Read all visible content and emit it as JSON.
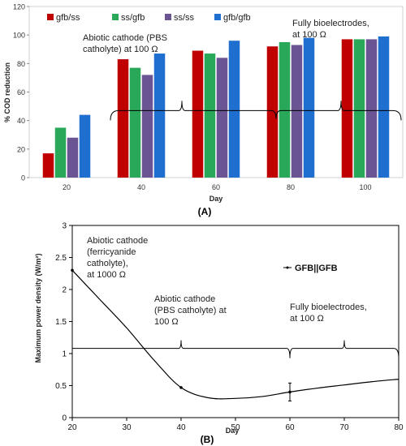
{
  "chart_data": [
    {
      "type": "bar",
      "panel_label": "(A)",
      "xlabel": "Day",
      "ylabel": "% COD reduction",
      "ylim": [
        0,
        120
      ],
      "yticks": [
        0,
        20,
        40,
        60,
        80,
        100,
        120
      ],
      "grid": false,
      "legend_position": "top-left",
      "categories": [
        "20",
        "40",
        "60",
        "80",
        "100"
      ],
      "series": [
        {
          "name": "gfb/ss",
          "color": "#c00000",
          "values": [
            17,
            83,
            89,
            92,
            97
          ]
        },
        {
          "name": "ss/gfb",
          "color": "#2aa85a",
          "values": [
            35,
            77,
            87,
            95,
            97
          ]
        },
        {
          "name": "ss/ss",
          "color": "#6b5493",
          "values": [
            28,
            72,
            84,
            93,
            97
          ]
        },
        {
          "name": "gfb/gfb",
          "color": "#1f6fd0",
          "values": [
            44,
            87,
            96,
            98,
            99
          ]
        }
      ],
      "annotations": [
        {
          "lines": [
            "Abiotic cathode (PBS",
            "catholyte) at 100 Ω"
          ]
        },
        {
          "lines": [
            "Fully bioelectrodes,",
            "at 100 Ω"
          ]
        }
      ],
      "brackets": [
        {
          "x_from": 0.5,
          "x_to": 2.5,
          "y": 47
        },
        {
          "x_from": 2.5,
          "x_to": 4.5,
          "y": 47
        }
      ]
    },
    {
      "type": "line",
      "panel_label": "(B)",
      "xlabel": "Day",
      "ylabel": "Maximum power density (W/m²)",
      "xlim": [
        20,
        80
      ],
      "ylim": [
        0,
        3
      ],
      "xticks": [
        20,
        30,
        40,
        50,
        60,
        70,
        80
      ],
      "yticks": [
        0,
        0.5,
        1,
        1.5,
        2,
        2.5,
        3
      ],
      "grid": false,
      "legend_position": "top-right",
      "series": [
        {
          "name": "GFB||GFB",
          "color": "#000000",
          "x": [
            20,
            25,
            30,
            35,
            40,
            45,
            50,
            55,
            60,
            65,
            70,
            75,
            80
          ],
          "y": [
            2.3,
            1.85,
            1.4,
            0.9,
            0.47,
            0.31,
            0.3,
            0.33,
            0.4,
            0.46,
            0.51,
            0.56,
            0.6
          ],
          "markers": [
            {
              "x": 20,
              "y": 2.3
            },
            {
              "x": 40,
              "y": 0.47
            },
            {
              "x": 60,
              "y": 0.4,
              "err": 0.14
            }
          ]
        }
      ],
      "annotations": [
        {
          "lines": [
            "Abiotic cathode",
            "(ferricyanide",
            "catholyte),",
            "at 1000 Ω"
          ]
        },
        {
          "lines": [
            "Abiotic cathode",
            "(PBS catholyte) at",
            "100 Ω"
          ]
        },
        {
          "lines": [
            "Fully bioelectrodes,",
            "at 100 Ω"
          ]
        }
      ],
      "brackets": [
        {
          "x_from": 20,
          "x_to": 60,
          "y": 1.08,
          "tip_x": 40
        },
        {
          "x_from": 60,
          "x_to": 80,
          "y": 1.08,
          "tip_x": 70
        }
      ]
    }
  ]
}
